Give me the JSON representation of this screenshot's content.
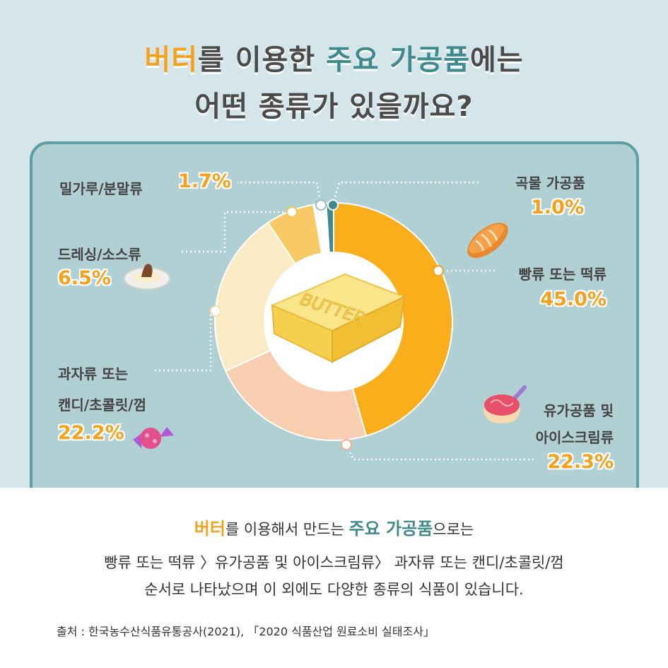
{
  "title": {
    "line1": [
      "버터",
      "를 이용한 ",
      "주요 가공품",
      "에는"
    ],
    "line2": "어떤 종류가 있을까요?"
  },
  "colors": {
    "accent_orange": "#f4a11e",
    "accent_teal": "#3f8a8f",
    "panel_bg": "#b1d0d3",
    "panel_border": "#5f9ea4",
    "page_bg": "#d4e6e9"
  },
  "chart_data": {
    "type": "pie",
    "variant": "donut",
    "center_label": "BUTTER",
    "unit": "%",
    "slices": [
      {
        "label": "빵류 또는 떡류",
        "value": 45.0,
        "value_text": "45.0%",
        "color": "#fbae1b",
        "icon": "bread-icon"
      },
      {
        "label": "유가공품 및 아이스크림류",
        "value": 22.3,
        "value_text": "22.3%",
        "color": "#f7ceb0",
        "icon": "ice-cream-icon"
      },
      {
        "label": "과자류 또는 캔디/초콜릿/껌",
        "value": 22.2,
        "value_text": "22.2%",
        "color": "#fbebc4",
        "icon": "candy-icon"
      },
      {
        "label": "드레싱/소스류",
        "value": 6.5,
        "value_text": "6.5%",
        "color": "#f7ca66",
        "icon": "sauce-plate-icon"
      },
      {
        "label": "밀가루/분말류",
        "value": 1.7,
        "value_text": "1.7%",
        "color": "#ffffff",
        "icon": ""
      },
      {
        "label": "곡물 가공품",
        "value": 1.0,
        "value_text": "1.0%",
        "color": "#3f8a8f",
        "icon": ""
      }
    ],
    "labels_display": {
      "bread_name": "빵류 또는 떡류",
      "dairy_name_1": "유가공품 및",
      "dairy_name_2": "아이스크림류",
      "candy_name_1": "과자류 또는",
      "candy_name_2": "캔디/초콜릿/껌",
      "sauce_name": "드레싱/소스류",
      "flour_name": "밀가루/분말류",
      "grain_name": "곡물 가공품"
    }
  },
  "summary": {
    "line1": [
      "버터",
      "를 이용해서 만드는 ",
      "주요 가공품",
      "으로는"
    ],
    "line2": "빵류 또는 떡류 〉유가공품 및 아이스크림류〉 과자류 또는 캔디/초콜릿/껌",
    "line3": "순서로 나타났으며 이 외에도 다양한 종류의 식품이 있습니다."
  },
  "source": "출처 : 한국농수산식품유통공사(2021), 「2020 식품산업 원료소비 실태조사」"
}
